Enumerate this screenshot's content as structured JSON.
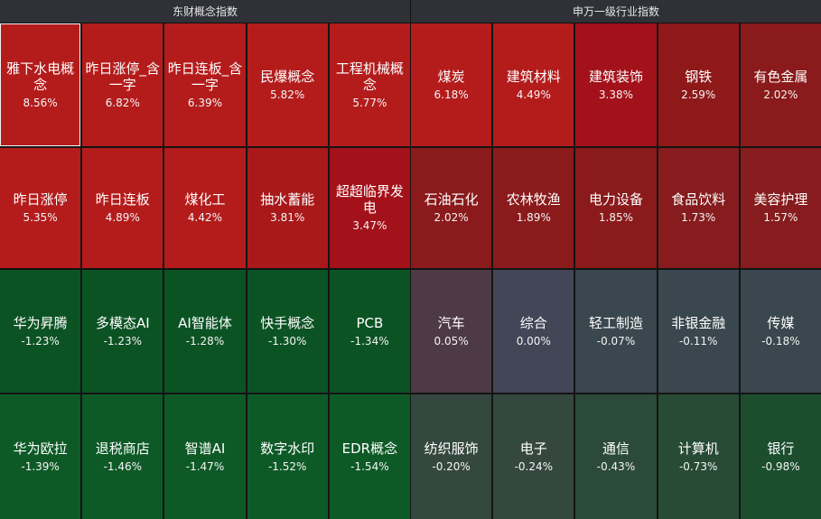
{
  "left_panel": {
    "title": "东财概念指数",
    "cells": [
      {
        "name": "雅下水电概念",
        "pct": "8.56%",
        "color": "#b41c1c",
        "selected": true
      },
      {
        "name": "昨日涨停_含一字",
        "pct": "6.82%",
        "color": "#b41c1c"
      },
      {
        "name": "昨日连板_含一字",
        "pct": "6.39%",
        "color": "#b41c1c"
      },
      {
        "name": "民爆概念",
        "pct": "5.82%",
        "color": "#b41c1c"
      },
      {
        "name": "工程机械概念",
        "pct": "5.77%",
        "color": "#b41c1c"
      },
      {
        "name": "昨日涨停",
        "pct": "5.35%",
        "color": "#b41c1c"
      },
      {
        "name": "昨日连板",
        "pct": "4.89%",
        "color": "#b41c1c"
      },
      {
        "name": "煤化工",
        "pct": "4.42%",
        "color": "#b41c1c"
      },
      {
        "name": "抽水蓄能",
        "pct": "3.81%",
        "color": "#a9191a"
      },
      {
        "name": "超超临界发电",
        "pct": "3.47%",
        "color": "#a3111a"
      },
      {
        "name": "华为昇腾",
        "pct": "-1.23%",
        "color": "#0c5324"
      },
      {
        "name": "多模态AI",
        "pct": "-1.23%",
        "color": "#0c5324"
      },
      {
        "name": "AI智能体",
        "pct": "-1.28%",
        "color": "#0c5324"
      },
      {
        "name": "快手概念",
        "pct": "-1.30%",
        "color": "#0c5324"
      },
      {
        "name": "PCB",
        "pct": "-1.34%",
        "color": "#0c5324"
      },
      {
        "name": "华为欧拉",
        "pct": "-1.39%",
        "color": "#0e5a27"
      },
      {
        "name": "退税商店",
        "pct": "-1.46%",
        "color": "#0e5a27"
      },
      {
        "name": "智谱AI",
        "pct": "-1.47%",
        "color": "#0e5a27"
      },
      {
        "name": "数字水印",
        "pct": "-1.52%",
        "color": "#0e5a27"
      },
      {
        "name": "EDR概念",
        "pct": "-1.54%",
        "color": "#0e5a27"
      }
    ]
  },
  "right_panel": {
    "title": "申万一级行业指数",
    "cells": [
      {
        "name": "煤炭",
        "pct": "6.18%",
        "color": "#b41c1c"
      },
      {
        "name": "建筑材料",
        "pct": "4.49%",
        "color": "#b41c1c"
      },
      {
        "name": "建筑装饰",
        "pct": "3.38%",
        "color": "#a3111a"
      },
      {
        "name": "钢铁",
        "pct": "2.59%",
        "color": "#8f1819"
      },
      {
        "name": "有色金属",
        "pct": "2.02%",
        "color": "#8a1a1b"
      },
      {
        "name": "石油石化",
        "pct": "2.02%",
        "color": "#8a1a1b"
      },
      {
        "name": "农林牧渔",
        "pct": "1.89%",
        "color": "#8a1a1b"
      },
      {
        "name": "电力设备",
        "pct": "1.85%",
        "color": "#8a1a1b"
      },
      {
        "name": "食品饮料",
        "pct": "1.73%",
        "color": "#861c1d"
      },
      {
        "name": "美容护理",
        "pct": "1.57%",
        "color": "#861c1d"
      },
      {
        "name": "汽车",
        "pct": "0.05%",
        "color": "#4e3a46"
      },
      {
        "name": "综合",
        "pct": "0.00%",
        "color": "#424656"
      },
      {
        "name": "轻工制造",
        "pct": "-0.07%",
        "color": "#3a474e"
      },
      {
        "name": "非银金融",
        "pct": "-0.11%",
        "color": "#3a474e"
      },
      {
        "name": "传媒",
        "pct": "-0.18%",
        "color": "#3a474e"
      },
      {
        "name": "纺织服饰",
        "pct": "-0.20%",
        "color": "#35483f"
      },
      {
        "name": "电子",
        "pct": "-0.24%",
        "color": "#35483f"
      },
      {
        "name": "通信",
        "pct": "-0.43%",
        "color": "#2c4a38"
      },
      {
        "name": "计算机",
        "pct": "-0.73%",
        "color": "#274b35"
      },
      {
        "name": "银行",
        "pct": "-0.98%",
        "color": "#1c4e2e"
      }
    ]
  }
}
